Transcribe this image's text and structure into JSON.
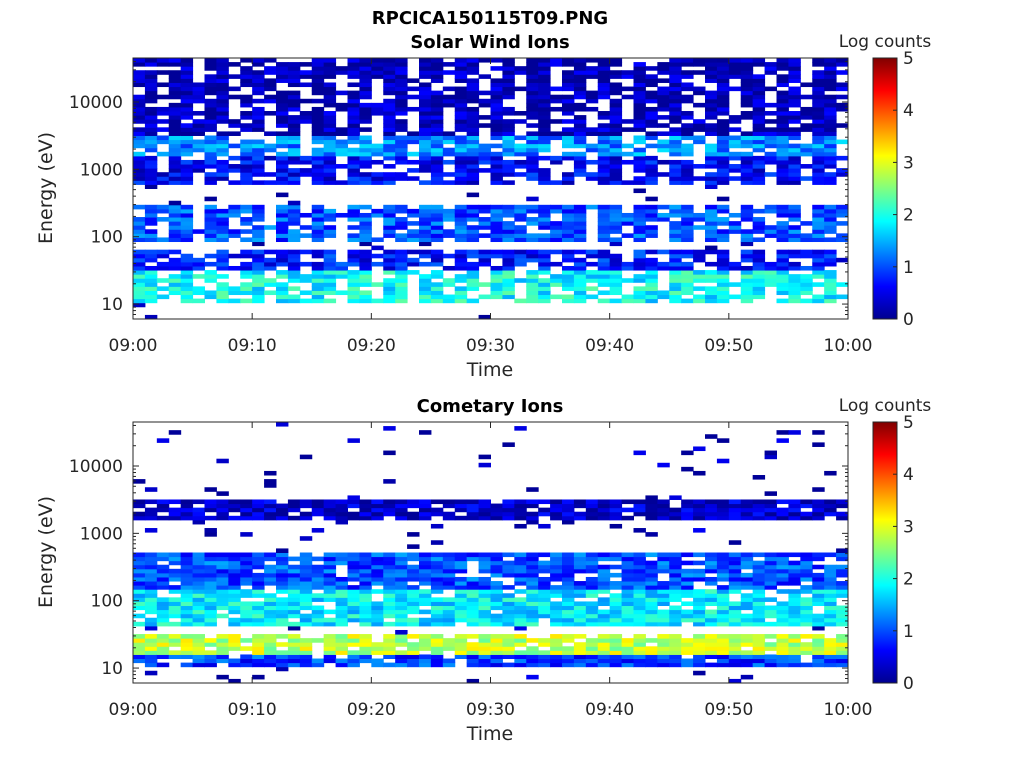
{
  "figure_title": "RPCICA150115T09.PNG",
  "colors": {
    "colormap": [
      "#00008f",
      "#0000ff",
      "#0080ff",
      "#00ffff",
      "#80ff80",
      "#ffff00",
      "#ff8000",
      "#ff0000",
      "#800000"
    ],
    "axis": "#262626",
    "background": "#ffffff"
  },
  "chart_data": [
    {
      "type": "heatmap",
      "title": "Solar Wind Ions",
      "xlabel": "Time",
      "ylabel": "Energy (eV)",
      "xticks": [
        "09:00",
        "09:10",
        "09:20",
        "09:30",
        "09:40",
        "09:50",
        "10:00"
      ],
      "yticks": [
        "10",
        "100",
        "1000",
        "10000"
      ],
      "ylim": [
        6,
        45000
      ],
      "yscale": "log",
      "colorbar": {
        "label": "Log counts",
        "range": [
          0,
          5
        ],
        "ticks": [
          "0",
          "1",
          "2",
          "3",
          "4",
          "5"
        ]
      },
      "time_range": [
        "09:00",
        "10:00"
      ],
      "energy_bands": [
        {
          "band": "10-30 eV",
          "level": 1.9
        },
        {
          "band": "30-60 eV",
          "level": 0.7
        },
        {
          "band": "80-300 eV",
          "level": 1.0
        },
        {
          "band": "600-1500 eV",
          "level": 0.6
        },
        {
          "band": "1500-3000 eV",
          "level": 1.3
        },
        {
          "band": "above 3000 eV",
          "level": 0.2
        }
      ]
    },
    {
      "type": "heatmap",
      "title": "Cometary Ions",
      "xlabel": "Time",
      "ylabel": "Energy (eV)",
      "xticks": [
        "09:00",
        "09:10",
        "09:20",
        "09:30",
        "09:40",
        "09:50",
        "10:00"
      ],
      "yticks": [
        "10",
        "100",
        "1000",
        "10000"
      ],
      "ylim": [
        6,
        45000
      ],
      "yscale": "log",
      "colorbar": {
        "label": "Log counts",
        "range": [
          0,
          5
        ],
        "ticks": [
          "0",
          "1",
          "2",
          "3",
          "4",
          "5"
        ]
      },
      "time_range": [
        "09:00",
        "10:00"
      ],
      "energy_bands": [
        {
          "band": "10-15 eV",
          "level": 0.9
        },
        {
          "band": "15-30 eV",
          "level": 2.8
        },
        {
          "band": "40-150 eV",
          "level": 1.8
        },
        {
          "band": "150-500 eV",
          "level": 1.0
        },
        {
          "band": "1500-3000 eV",
          "level": 0.3
        }
      ]
    }
  ]
}
